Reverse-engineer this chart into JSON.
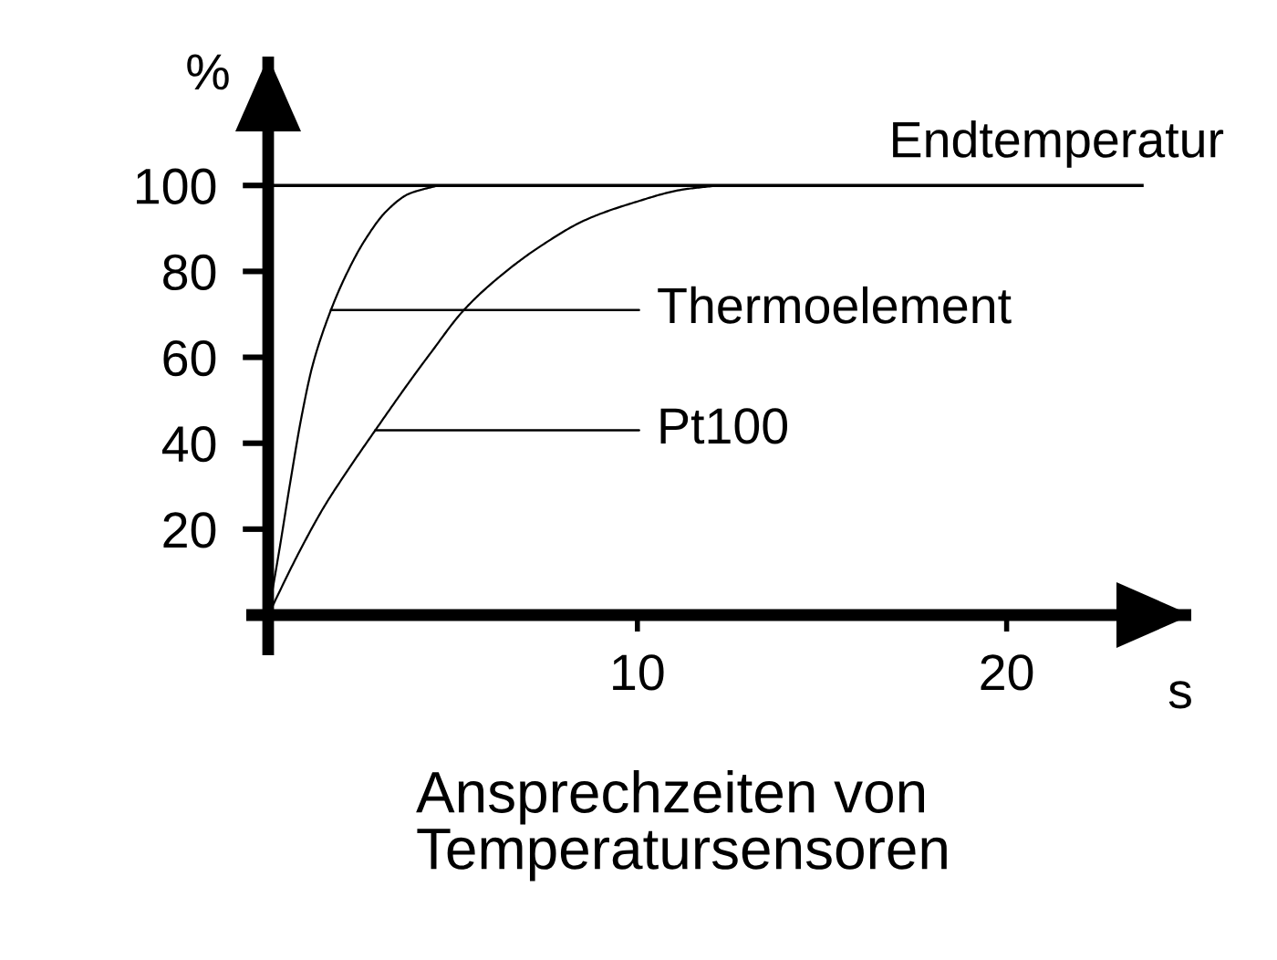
{
  "chart_data": {
    "type": "line",
    "title": "Ansprechzeiten von\nTemperatursensoren",
    "xlabel": "s",
    "ylabel": "%",
    "xlim": [
      0,
      25
    ],
    "ylim": [
      0,
      130
    ],
    "xticks": [
      10,
      20
    ],
    "yticks": [
      20,
      40,
      60,
      80,
      100
    ],
    "line_style": "solid",
    "series": [
      {
        "color": "#000000",
        "x": [
          0,
          0.3,
          0.6,
          0.9,
          1.2,
          1.7,
          2.1,
          2.6,
          3.2,
          3.8,
          4.6
        ],
        "values": [
          0,
          15,
          31,
          46,
          58,
          71,
          79,
          87,
          94,
          98,
          100
        ]
      },
      {
        "color": "#000000",
        "x": [
          0,
          0.8,
          1.5,
          2.1,
          2.9,
          3.8,
          4.4,
          5.3,
          6.3,
          7.4,
          8.6,
          9.9,
          11.2,
          12.2
        ],
        "values": [
          0,
          14,
          25,
          33,
          43,
          54,
          61,
          71,
          79,
          86,
          92,
          96,
          99,
          100
        ]
      }
    ],
    "ref_lines": [
      {
        "axis": "y",
        "value": 100,
        "label": "Endtemperatur"
      }
    ],
    "annotations": [
      {
        "text": "Thermoelement",
        "x": 1.7,
        "y": 71
      },
      {
        "text": "Pt100",
        "x": 2.9,
        "y": 43
      }
    ]
  }
}
